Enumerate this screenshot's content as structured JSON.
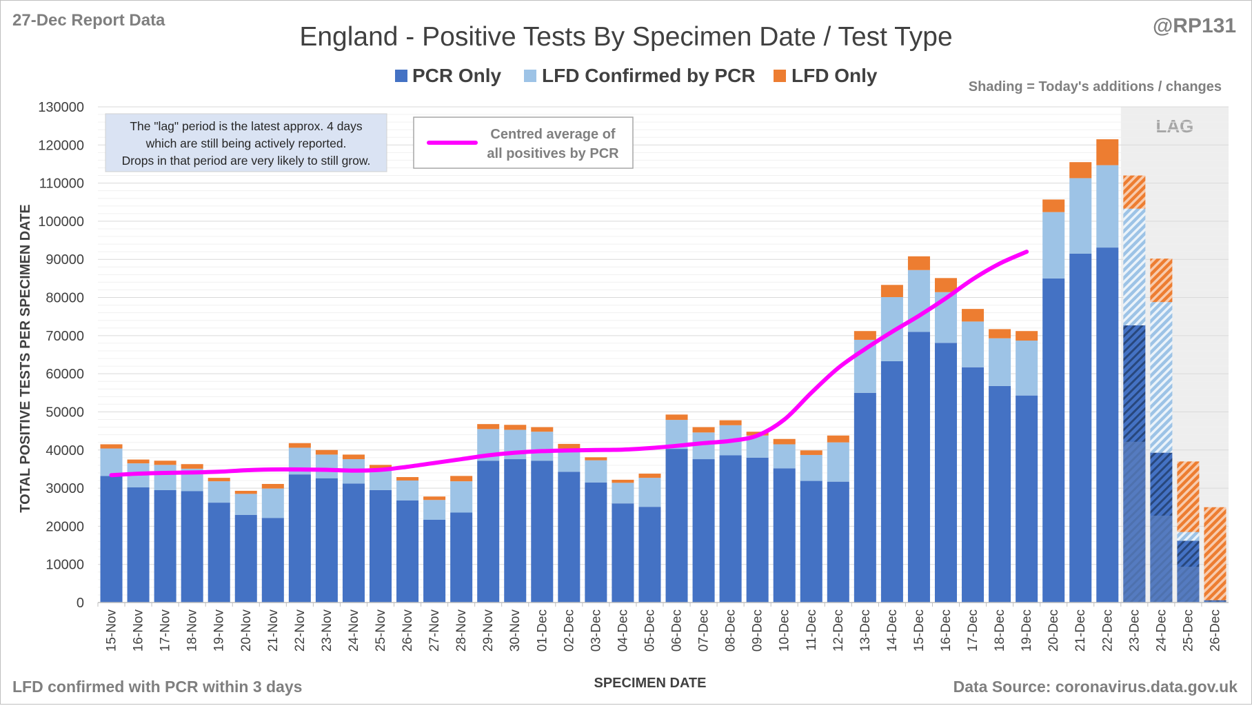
{
  "header": {
    "report_label": "27-Dec Report Data",
    "handle": "@RP131"
  },
  "footer": {
    "note": "LFD confirmed with PCR within 3 days",
    "source": "Data Source: coronavirus.data.gov.uk"
  },
  "colors": {
    "pcr_only": "#4472c4",
    "lfd_confirmed": "#9dc3e6",
    "lfd_only": "#ed7d31",
    "average_line": "#ff00ff",
    "lag_shading": "#eeeeee"
  },
  "chart_data": {
    "type": "bar",
    "stacked": true,
    "title": "England - Positive Tests By Specimen Date / Test Type",
    "xlabel": "SPECIMEN DATE",
    "ylabel": "TOTAL POSITIVE TESTS PER SPECIMEN DATE",
    "ylim": [
      0,
      130000
    ],
    "yticks": [
      0,
      10000,
      20000,
      30000,
      40000,
      50000,
      60000,
      70000,
      80000,
      90000,
      100000,
      110000,
      120000,
      130000
    ],
    "grid": true,
    "legend_position": "top",
    "categories": [
      "15-Nov",
      "16-Nov",
      "17-Nov",
      "18-Nov",
      "19-Nov",
      "20-Nov",
      "21-Nov",
      "22-Nov",
      "23-Nov",
      "24-Nov",
      "25-Nov",
      "26-Nov",
      "27-Nov",
      "28-Nov",
      "29-Nov",
      "30-Nov",
      "01-Dec",
      "02-Dec",
      "03-Dec",
      "04-Dec",
      "05-Dec",
      "06-Dec",
      "07-Dec",
      "08-Dec",
      "09-Dec",
      "10-Dec",
      "11-Dec",
      "12-Dec",
      "13-Dec",
      "14-Dec",
      "15-Dec",
      "16-Dec",
      "17-Dec",
      "18-Dec",
      "19-Dec",
      "20-Dec",
      "21-Dec",
      "22-Dec",
      "23-Dec",
      "24-Dec",
      "25-Dec",
      "26-Dec"
    ],
    "series": [
      {
        "name": "PCR Only",
        "values": [
          33200,
          30200,
          29500,
          29200,
          26200,
          23000,
          22200,
          33600,
          32600,
          31200,
          29500,
          26800,
          21700,
          23600,
          37200,
          37600,
          37200,
          34300,
          31500,
          26000,
          25100,
          40300,
          37600,
          38600,
          38000,
          35200,
          31900,
          31700,
          55000,
          63300,
          71000,
          68100,
          61700,
          56800,
          54300,
          85000,
          91500,
          93100,
          72700,
          39300,
          16200,
          600
        ]
      },
      {
        "name": "LFD Confirmed by PCR",
        "values": [
          7200,
          6300,
          6600,
          5900,
          5600,
          5500,
          7700,
          7000,
          6200,
          6400,
          5700,
          5200,
          5200,
          8200,
          8300,
          7700,
          7600,
          6100,
          5800,
          5400,
          7600,
          7600,
          7000,
          7900,
          5800,
          6300,
          6800,
          10300,
          13900,
          16800,
          16200,
          13300,
          12000,
          12500,
          14400,
          17400,
          19800,
          21600,
          30600,
          39500,
          2300,
          0
        ]
      },
      {
        "name": "LFD Only",
        "values": [
          1100,
          1000,
          1100,
          1200,
          900,
          800,
          1200,
          1200,
          1200,
          1200,
          900,
          900,
          900,
          1400,
          1300,
          1300,
          1200,
          1200,
          800,
          800,
          1100,
          1400,
          1400,
          1300,
          1000,
          1400,
          1200,
          1800,
          2300,
          3200,
          3600,
          3700,
          3300,
          2400,
          2500,
          3300,
          4200,
          6800,
          8700,
          11400,
          18500,
          24400
        ]
      }
    ],
    "centred_average_label": "Centred average of all positives by PCR",
    "centred_average": [
      33400,
      33800,
      34000,
      34100,
      34300,
      34700,
      34900,
      34900,
      34800,
      34600,
      34800,
      35600,
      36600,
      37600,
      38600,
      39300,
      39700,
      39900,
      40000,
      40100,
      40500,
      41100,
      41800,
      42400,
      43800,
      48000,
      55000,
      61500,
      66500,
      71000,
      75200,
      79800,
      84800,
      88900,
      92000,
      null,
      null,
      null,
      null,
      null,
      null,
      null
    ],
    "lag_label": "LAG",
    "lag_categories": [
      "23-Dec",
      "24-Dec",
      "25-Dec",
      "26-Dec"
    ],
    "lag_note": "The \"lag\" period is the latest approx. 4 days which are still being actively reported. Drops in that period are very likely to still grow.",
    "shading_note": "Shading = Today's additions / changes"
  }
}
